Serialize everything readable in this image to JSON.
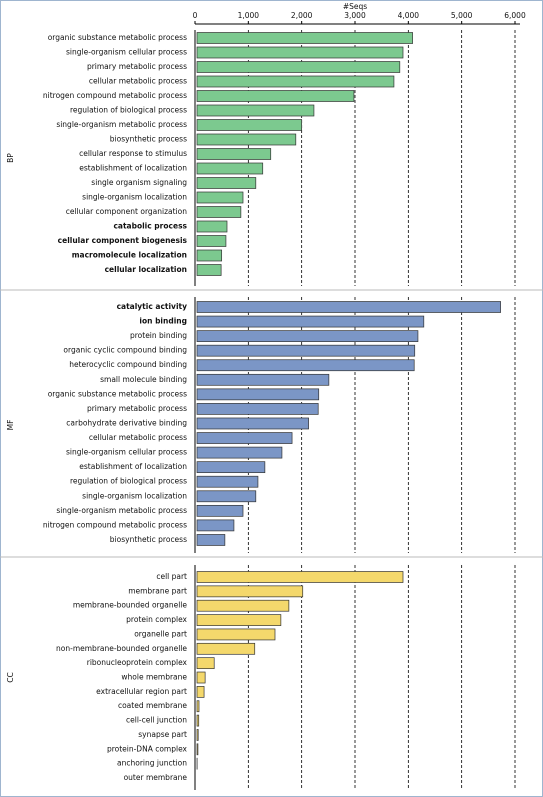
{
  "chart_data": [
    {
      "type": "bar",
      "orientation": "horizontal",
      "y_label": "BP",
      "x_label": "#Seqs",
      "color": "#7cc98f",
      "categories": [
        "organic substance metabolic process",
        "single-organism cellular process",
        "primary metabolic process",
        "cellular metabolic process",
        "nitrogen compound metabolic process",
        "regulation of biological process",
        "single-organism metabolic process",
        "biosynthetic process",
        "cellular response to stimulus",
        "establishment of localization",
        "single organism signaling",
        "single-organism localization",
        "cellular component organization",
        "catabolic process",
        "cellular component biogenesis",
        "macromolecule localization",
        "cellular localization"
      ],
      "values": [
        4080,
        3900,
        3840,
        3730,
        2980,
        2230,
        2000,
        1890,
        1420,
        1270,
        1140,
        900,
        860,
        600,
        580,
        500,
        490
      ],
      "bold": [
        13,
        14,
        15,
        16
      ],
      "xlim": [
        0,
        6000
      ],
      "xticks": [
        0,
        {
          "value": 1000,
          "label": "1,000"
        },
        {
          "value": 2000,
          "label": "2,000"
        },
        {
          "value": 3000,
          "label": "3,000"
        },
        {
          "value": 4000,
          "label": "4,000"
        },
        {
          "value": 5000,
          "label": "5,000"
        },
        {
          "value": 6000,
          "label": "6,000"
        }
      ],
      "grid": true
    },
    {
      "type": "bar",
      "orientation": "horizontal",
      "y_label": "MF",
      "color": "#7b96c6",
      "categories": [
        "catalytic activity",
        "ion binding",
        "protein binding",
        "organic cyclic compound binding",
        "heterocyclic compound binding",
        "small molecule binding",
        "organic substance metabolic process",
        "primary metabolic process",
        "carbohydrate derivative binding",
        "cellular metabolic process",
        "single-organism cellular process",
        "establishment of localization",
        "regulation of biological process",
        "single-organism localization",
        "single-organism metabolic process",
        "nitrogen compound metabolic process",
        "biosynthetic process"
      ],
      "values": [
        5730,
        4290,
        4180,
        4120,
        4110,
        2510,
        2320,
        2310,
        2130,
        1820,
        1630,
        1310,
        1180,
        1140,
        900,
        730,
        560
      ],
      "bold": [
        0,
        1
      ],
      "xlim": [
        0,
        6000
      ],
      "grid": true
    },
    {
      "type": "bar",
      "orientation": "horizontal",
      "y_label": "CC",
      "color": "#f4d86c",
      "categories": [
        "cell part",
        "membrane part",
        "membrane-bounded organelle",
        "protein complex",
        "organelle part",
        "non-membrane-bounded organelle",
        "ribonucleoprotein complex",
        "whole membrane",
        "extracellular region part",
        "coated membrane",
        "cell-cell junction",
        "synapse part",
        "protein-DNA complex",
        "anchoring junction",
        "outer membrane"
      ],
      "values": [
        3900,
        2020,
        1760,
        1610,
        1500,
        1120,
        360,
        190,
        170,
        75,
        70,
        60,
        55,
        40,
        35
      ],
      "bold": [],
      "xlim": [
        0,
        6000
      ],
      "grid": true
    }
  ]
}
